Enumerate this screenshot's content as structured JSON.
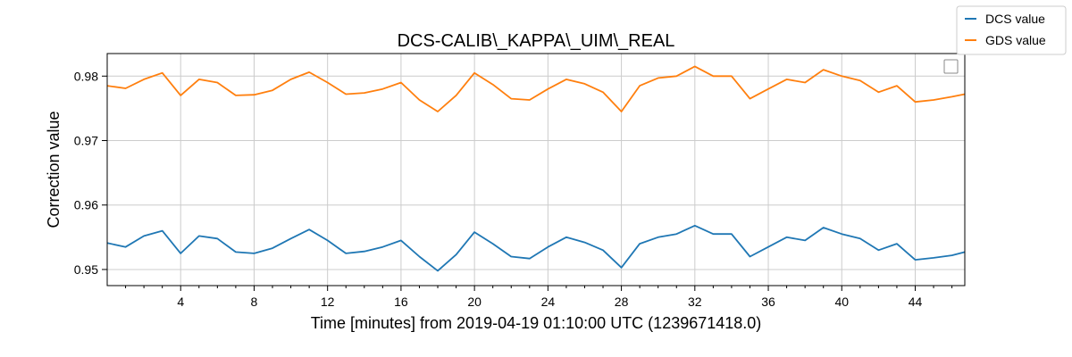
{
  "chart_data": {
    "type": "line",
    "title": "DCS-CALIB\\_KAPPA\\_UIM\\_REAL",
    "xlabel": "Time [minutes] from 2019-04-19 01:10:00 UTC (1239671418.0)",
    "ylabel": "Correction value",
    "xlim": [
      0,
      46.7
    ],
    "ylim": [
      0.9475,
      0.9835
    ],
    "x_ticks": [
      4,
      8,
      12,
      16,
      20,
      24,
      28,
      32,
      36,
      40,
      44
    ],
    "x_tick_labels": [
      "4",
      "8",
      "12",
      "16",
      "20",
      "24",
      "28",
      "32",
      "36",
      "40",
      "44"
    ],
    "y_ticks": [
      0.95,
      0.96,
      0.97,
      0.98
    ],
    "y_tick_labels": [
      "0.95",
      "0.96",
      "0.97",
      "0.98"
    ],
    "grid": true,
    "legend_position": "outside-top-right",
    "series": [
      {
        "name": "DCS value",
        "color": "#1f77b4",
        "points": [
          [
            0,
            0.9541
          ],
          [
            1,
            0.9535
          ],
          [
            2,
            0.9552
          ],
          [
            3,
            0.956
          ],
          [
            4,
            0.9525
          ],
          [
            5,
            0.9552
          ],
          [
            6,
            0.9548
          ],
          [
            7,
            0.9527
          ],
          [
            8,
            0.9525
          ],
          [
            9,
            0.9533
          ],
          [
            10,
            0.9548
          ],
          [
            11,
            0.9562
          ],
          [
            12,
            0.9545
          ],
          [
            13,
            0.9525
          ],
          [
            14,
            0.9528
          ],
          [
            15,
            0.9535
          ],
          [
            16,
            0.9545
          ],
          [
            17,
            0.952
          ],
          [
            18,
            0.9498
          ],
          [
            19,
            0.9523
          ],
          [
            20,
            0.9558
          ],
          [
            21,
            0.954
          ],
          [
            22,
            0.952
          ],
          [
            23,
            0.9517
          ],
          [
            24,
            0.9535
          ],
          [
            25,
            0.955
          ],
          [
            26,
            0.9542
          ],
          [
            27,
            0.953
          ],
          [
            28,
            0.9503
          ],
          [
            29,
            0.954
          ],
          [
            30,
            0.955
          ],
          [
            31,
            0.9555
          ],
          [
            32,
            0.9568
          ],
          [
            33,
            0.9555
          ],
          [
            34,
            0.9555
          ],
          [
            35,
            0.952
          ],
          [
            36,
            0.9535
          ],
          [
            37,
            0.955
          ],
          [
            38,
            0.9545
          ],
          [
            39,
            0.9565
          ],
          [
            40,
            0.9555
          ],
          [
            41,
            0.9548
          ],
          [
            42,
            0.953
          ],
          [
            43,
            0.954
          ],
          [
            44,
            0.9515
          ],
          [
            45,
            0.9518
          ],
          [
            46,
            0.9522
          ],
          [
            46.7,
            0.9527
          ]
        ]
      },
      {
        "name": "GDS value",
        "color": "#ff7f0e",
        "points": [
          [
            0,
            0.9785
          ],
          [
            1,
            0.9781
          ],
          [
            2,
            0.9795
          ],
          [
            3,
            0.9805
          ],
          [
            4,
            0.977
          ],
          [
            5,
            0.9795
          ],
          [
            6,
            0.979
          ],
          [
            7,
            0.977
          ],
          [
            8,
            0.9771
          ],
          [
            9,
            0.9778
          ],
          [
            10,
            0.9795
          ],
          [
            11,
            0.9806
          ],
          [
            12,
            0.979
          ],
          [
            13,
            0.9772
          ],
          [
            14,
            0.9774
          ],
          [
            15,
            0.978
          ],
          [
            16,
            0.979
          ],
          [
            17,
            0.9763
          ],
          [
            18,
            0.9745
          ],
          [
            19,
            0.977
          ],
          [
            20,
            0.9805
          ],
          [
            21,
            0.9787
          ],
          [
            22,
            0.9765
          ],
          [
            23,
            0.9763
          ],
          [
            24,
            0.978
          ],
          [
            25,
            0.9795
          ],
          [
            26,
            0.9788
          ],
          [
            27,
            0.9775
          ],
          [
            28,
            0.9745
          ],
          [
            29,
            0.9785
          ],
          [
            30,
            0.9797
          ],
          [
            31,
            0.98
          ],
          [
            32,
            0.9815
          ],
          [
            33,
            0.98
          ],
          [
            34,
            0.98
          ],
          [
            35,
            0.9765
          ],
          [
            36,
            0.978
          ],
          [
            37,
            0.9795
          ],
          [
            38,
            0.979
          ],
          [
            39,
            0.981
          ],
          [
            40,
            0.98
          ],
          [
            41,
            0.9793
          ],
          [
            42,
            0.9775
          ],
          [
            43,
            0.9785
          ],
          [
            44,
            0.976
          ],
          [
            45,
            0.9763
          ],
          [
            46,
            0.9768
          ],
          [
            46.7,
            0.9772
          ]
        ]
      }
    ]
  }
}
